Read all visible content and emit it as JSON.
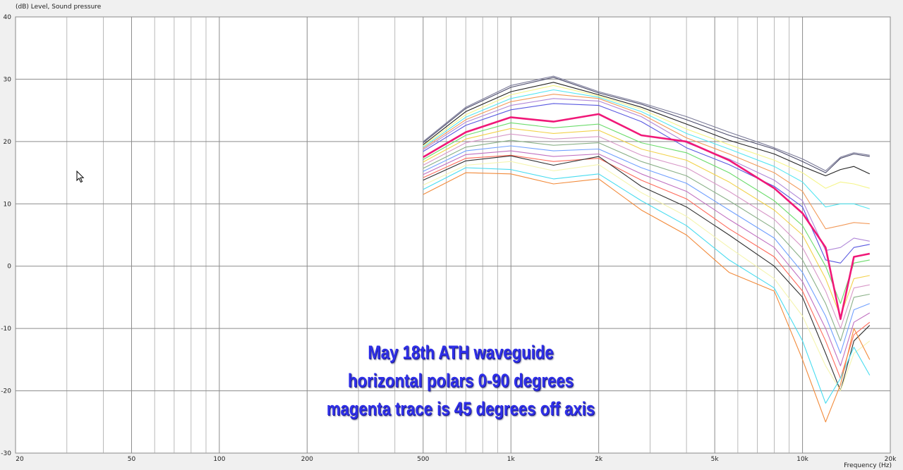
{
  "chart_data": {
    "type": "line",
    "ylabel": "(dB)  Level, Sound pressure",
    "xlabel": "Frequency  (Hz)",
    "x_scale": "log",
    "xlim": [
      20,
      20000
    ],
    "ylim": [
      -30,
      40
    ],
    "grid": true,
    "x_tick_labels": [
      {
        "value": 20,
        "label": "20"
      },
      {
        "value": 50,
        "label": "50"
      },
      {
        "value": 100,
        "label": "100"
      },
      {
        "value": 200,
        "label": "200"
      },
      {
        "value": 500,
        "label": "500"
      },
      {
        "value": 1000,
        "label": "1k"
      },
      {
        "value": 2000,
        "label": "2k"
      },
      {
        "value": 5000,
        "label": "5k"
      },
      {
        "value": 10000,
        "label": "10k"
      },
      {
        "value": 20000,
        "label": "20k"
      }
    ],
    "y_ticks": [
      40,
      30,
      20,
      10,
      0,
      -10,
      -20,
      -30
    ],
    "annotation": [
      "May 18th ATH waveguide",
      "horizontal polars 0-90 degrees",
      "magenta trace is 45 degrees off axis"
    ],
    "x": [
      500,
      700,
      1000,
      1400,
      2000,
      2800,
      4000,
      5600,
      8000,
      10000,
      12000,
      13500,
      15000,
      17000
    ],
    "series": [
      {
        "color": "#7a7a98",
        "values": [
          20,
          25.5,
          29,
          30.5,
          28,
          26.2,
          24,
          21.5,
          19,
          17.2,
          15.3,
          17.5,
          18.2,
          17.8
        ]
      },
      {
        "color": "#4a4a6a",
        "values": [
          19.8,
          25.3,
          28.7,
          30.3,
          27.8,
          26,
          23.5,
          21,
          18.8,
          16.8,
          15,
          17.3,
          18,
          17.6
        ]
      },
      {
        "color": "#222222",
        "values": [
          19.5,
          24.8,
          28,
          29.5,
          27.5,
          25.5,
          22.8,
          20.2,
          18,
          16,
          14.5,
          15.5,
          16,
          14.8
        ]
      },
      {
        "color": "#f5f58a",
        "values": [
          19.3,
          24.3,
          27.5,
          29,
          27.3,
          25.2,
          22,
          19.5,
          17,
          15,
          12.5,
          13.5,
          13.2,
          12.5
        ]
      },
      {
        "color": "#55e6f2",
        "values": [
          19.1,
          23.9,
          26.9,
          28.3,
          27.1,
          24.8,
          21.3,
          18.8,
          16,
          13.5,
          9.5,
          10,
          10,
          9.2
        ]
      },
      {
        "color": "#f29a5a",
        "values": [
          18.9,
          23.5,
          26.4,
          27.6,
          26.9,
          24.4,
          20.6,
          18,
          15,
          12,
          6,
          6.5,
          7,
          6.8
        ]
      },
      {
        "color": "#b088d8",
        "values": [
          18.7,
          23.1,
          25.8,
          26.9,
          26.5,
          24,
          19.8,
          17.2,
          13.8,
          10.5,
          2.5,
          3,
          4.5,
          4
        ]
      },
      {
        "color": "#5858e0",
        "values": [
          18.4,
          22.6,
          25.1,
          26.1,
          25.8,
          23.2,
          19,
          16.3,
          12.8,
          9.5,
          1,
          0.5,
          3,
          3.5
        ]
      },
      {
        "color": "#f01878",
        "width": 2.6,
        "values": [
          17.5,
          21.5,
          23.9,
          23.2,
          24.4,
          21,
          20,
          17,
          12.5,
          8.5,
          3,
          -8.5,
          1.5,
          2
        ]
      },
      {
        "color": "#6cdc6c",
        "values": [
          17.1,
          21,
          23,
          22.2,
          22.8,
          19.8,
          18.2,
          15,
          10.5,
          6.5,
          0,
          -6,
          0.5,
          1
        ]
      },
      {
        "color": "#f2d24a",
        "values": [
          16.7,
          20.4,
          22.1,
          21.3,
          21.8,
          18.8,
          17,
          13.5,
          9,
          5,
          -2,
          -8,
          -2,
          -1.5
        ]
      },
      {
        "color": "#d898c8",
        "values": [
          16.2,
          19.8,
          21.2,
          20.4,
          20.8,
          17.8,
          15.8,
          12,
          7.5,
          3,
          -4,
          -10,
          -3.5,
          -3
        ]
      },
      {
        "color": "#8ab088",
        "values": [
          15.7,
          19.1,
          20.2,
          19.4,
          19.8,
          16.8,
          14.5,
          10.5,
          6,
          1,
          -6,
          -12,
          -5,
          -4.5
        ]
      },
      {
        "color": "#70a0ff",
        "values": [
          15.2,
          18.5,
          19.3,
          18.5,
          18.8,
          15.8,
          13.3,
          9,
          4.5,
          -1,
          -8,
          -14,
          -7,
          -6
        ]
      },
      {
        "color": "#c070c0",
        "values": [
          14.7,
          17.9,
          18.5,
          17.6,
          18,
          14.8,
          12,
          7.5,
          3,
          -2.5,
          -10,
          -16,
          -9,
          -7.5
        ]
      },
      {
        "color": "#ff6a5a",
        "values": [
          14.2,
          17.3,
          17.8,
          16.8,
          17.3,
          13.8,
          10.8,
          6,
          1.5,
          -4,
          -12,
          -18,
          -11,
          -9
        ]
      },
      {
        "color": "#303030",
        "values": [
          13.8,
          16.9,
          17.7,
          16.2,
          17.6,
          12.8,
          9.5,
          5,
          0,
          -5,
          -14,
          -20,
          -12,
          -9.5
        ]
      },
      {
        "color": "#f5f5b0",
        "values": [
          13,
          16.2,
          16.8,
          15.3,
          16.3,
          11.8,
          8,
          3,
          -2,
          -8,
          -16,
          -20,
          -14,
          -12
        ]
      },
      {
        "color": "#48dcf0",
        "values": [
          12.3,
          15.8,
          15.5,
          14,
          14.8,
          10.5,
          6.5,
          1,
          -3.5,
          -12,
          -22,
          -18,
          -13,
          -17.5
        ]
      },
      {
        "color": "#f28a3a",
        "values": [
          11.5,
          15,
          14.8,
          13.2,
          14,
          9,
          5,
          -1,
          -4,
          -15,
          -25,
          -19,
          -10,
          -15
        ]
      }
    ]
  },
  "cursor": {
    "icon": "mouse-pointer-icon"
  }
}
